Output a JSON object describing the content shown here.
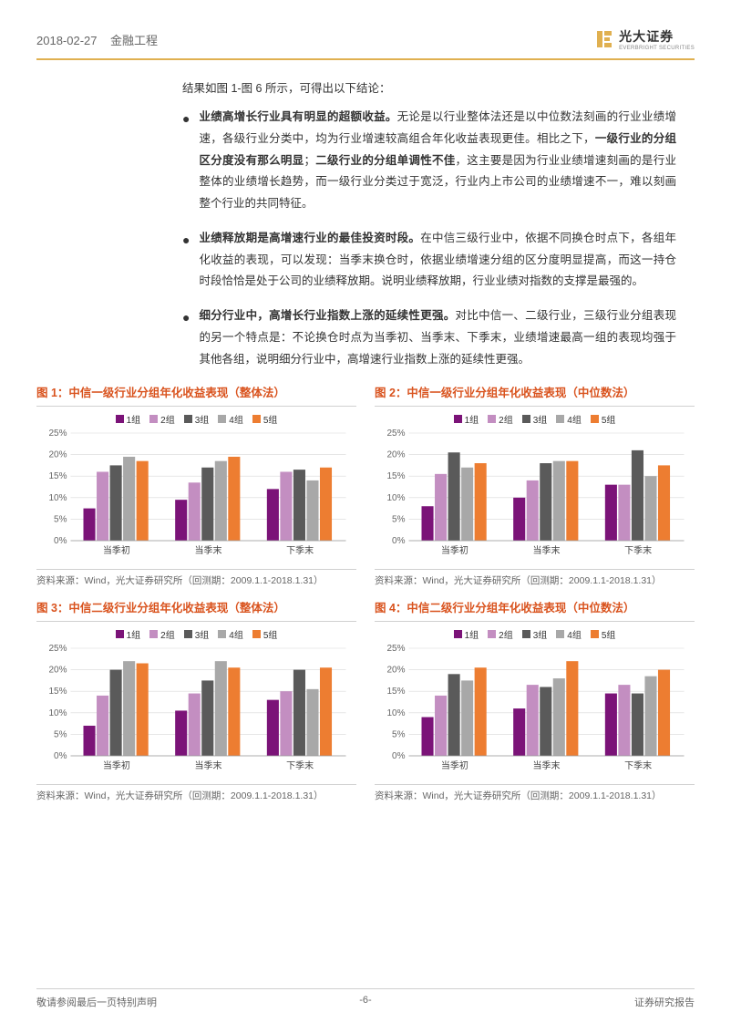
{
  "header": {
    "date": "2018-02-27",
    "category": "金融工程",
    "logo_cn": "光大证券",
    "logo_en": "EVERBRIGHT SECURITIES"
  },
  "intro": "结果如图 1-图 6 所示，可得出以下结论：",
  "bullets": [
    {
      "lead": "业绩高增长行业具有明显的超额收益。",
      "body_pre": "无论是以行业整体法还是以中位数法刻画的行业业绩增速，各级行业分类中，均为行业增速较高组合年化收益表现更佳。相比之下，",
      "bold1": "一级行业的分组区分度没有那么明显",
      "mid": "；",
      "bold2": "二级行业的分组单调性不佳",
      "body_post": "，这主要是因为行业业绩增速刻画的是行业整体的业绩增长趋势，而一级行业分类过于宽泛，行业内上市公司的业绩增速不一，难以刻画整个行业的共同特征。"
    },
    {
      "lead": "业绩释放期是高增速行业的最佳投资时段。",
      "body": "在中信三级行业中，依据不同换仓时点下，各组年化收益的表现，可以发现：当季末换仓时，依据业绩增速分组的区分度明显提高，而这一持仓时段恰恰是处于公司的业绩释放期。说明业绩释放期，行业业绩对指数的支撑是最强的。"
    },
    {
      "lead": "细分行业中，高增长行业指数上涨的延续性更强。",
      "body": "对比中信一、二级行业，三级行业分组表现的另一个特点是：不论换仓时点为当季初、当季末、下季末，业绩增速最高一组的表现均强于其他各组，说明细分行业中，高增速行业指数上涨的延续性更强。"
    }
  ],
  "series": {
    "labels": [
      "1组",
      "2组",
      "3组",
      "4组",
      "5组"
    ],
    "colors": [
      "#7b1378",
      "#c38ec1",
      "#5a5a5a",
      "#a8a8a8",
      "#ed7d31"
    ]
  },
  "xcats": [
    "当季初",
    "当季末",
    "下季末"
  ],
  "ylim": [
    0,
    25
  ],
  "ytick_step": 5,
  "charts": [
    {
      "title": "图 1：中信一级行业分组年化收益表现（整体法）",
      "data": [
        [
          7.5,
          16.0,
          17.5,
          19.5,
          18.5
        ],
        [
          9.5,
          13.5,
          17.0,
          18.5,
          19.5
        ],
        [
          12.0,
          16.0,
          16.5,
          14.0,
          17.0
        ]
      ],
      "source": "资料来源：Wind，光大证券研究所（回测期：2009.1.1-2018.1.31）"
    },
    {
      "title": "图 2：中信一级行业分组年化收益表现（中位数法）",
      "data": [
        [
          8.0,
          15.5,
          20.5,
          17.0,
          18.0
        ],
        [
          10.0,
          14.0,
          18.0,
          18.5,
          18.5
        ],
        [
          13.0,
          13.0,
          21.0,
          15.0,
          17.5
        ]
      ],
      "source": "资料来源：Wind，光大证券研究所（回测期：2009.1.1-2018.1.31）"
    },
    {
      "title": "图 3：中信二级行业分组年化收益表现（整体法）",
      "data": [
        [
          7.0,
          14.0,
          20.0,
          22.0,
          21.5
        ],
        [
          10.5,
          14.5,
          17.5,
          22.0,
          20.5
        ],
        [
          13.0,
          15.0,
          20.0,
          15.5,
          20.5
        ]
      ],
      "source": "资料来源：Wind，光大证券研究所（回测期：2009.1.1-2018.1.31）"
    },
    {
      "title": "图 4：中信二级行业分组年化收益表现（中位数法）",
      "data": [
        [
          9.0,
          14.0,
          19.0,
          17.5,
          20.5
        ],
        [
          11.0,
          16.5,
          16.0,
          18.0,
          22.0
        ],
        [
          14.5,
          16.5,
          14.5,
          18.5,
          20.0
        ]
      ],
      "source": "资料来源：Wind，光大证券研究所（回测期：2009.1.1-2018.1.31）"
    }
  ],
  "footer": {
    "left": "敬请参阅最后一页特别声明",
    "center": "-6-",
    "right": "证券研究报告"
  }
}
